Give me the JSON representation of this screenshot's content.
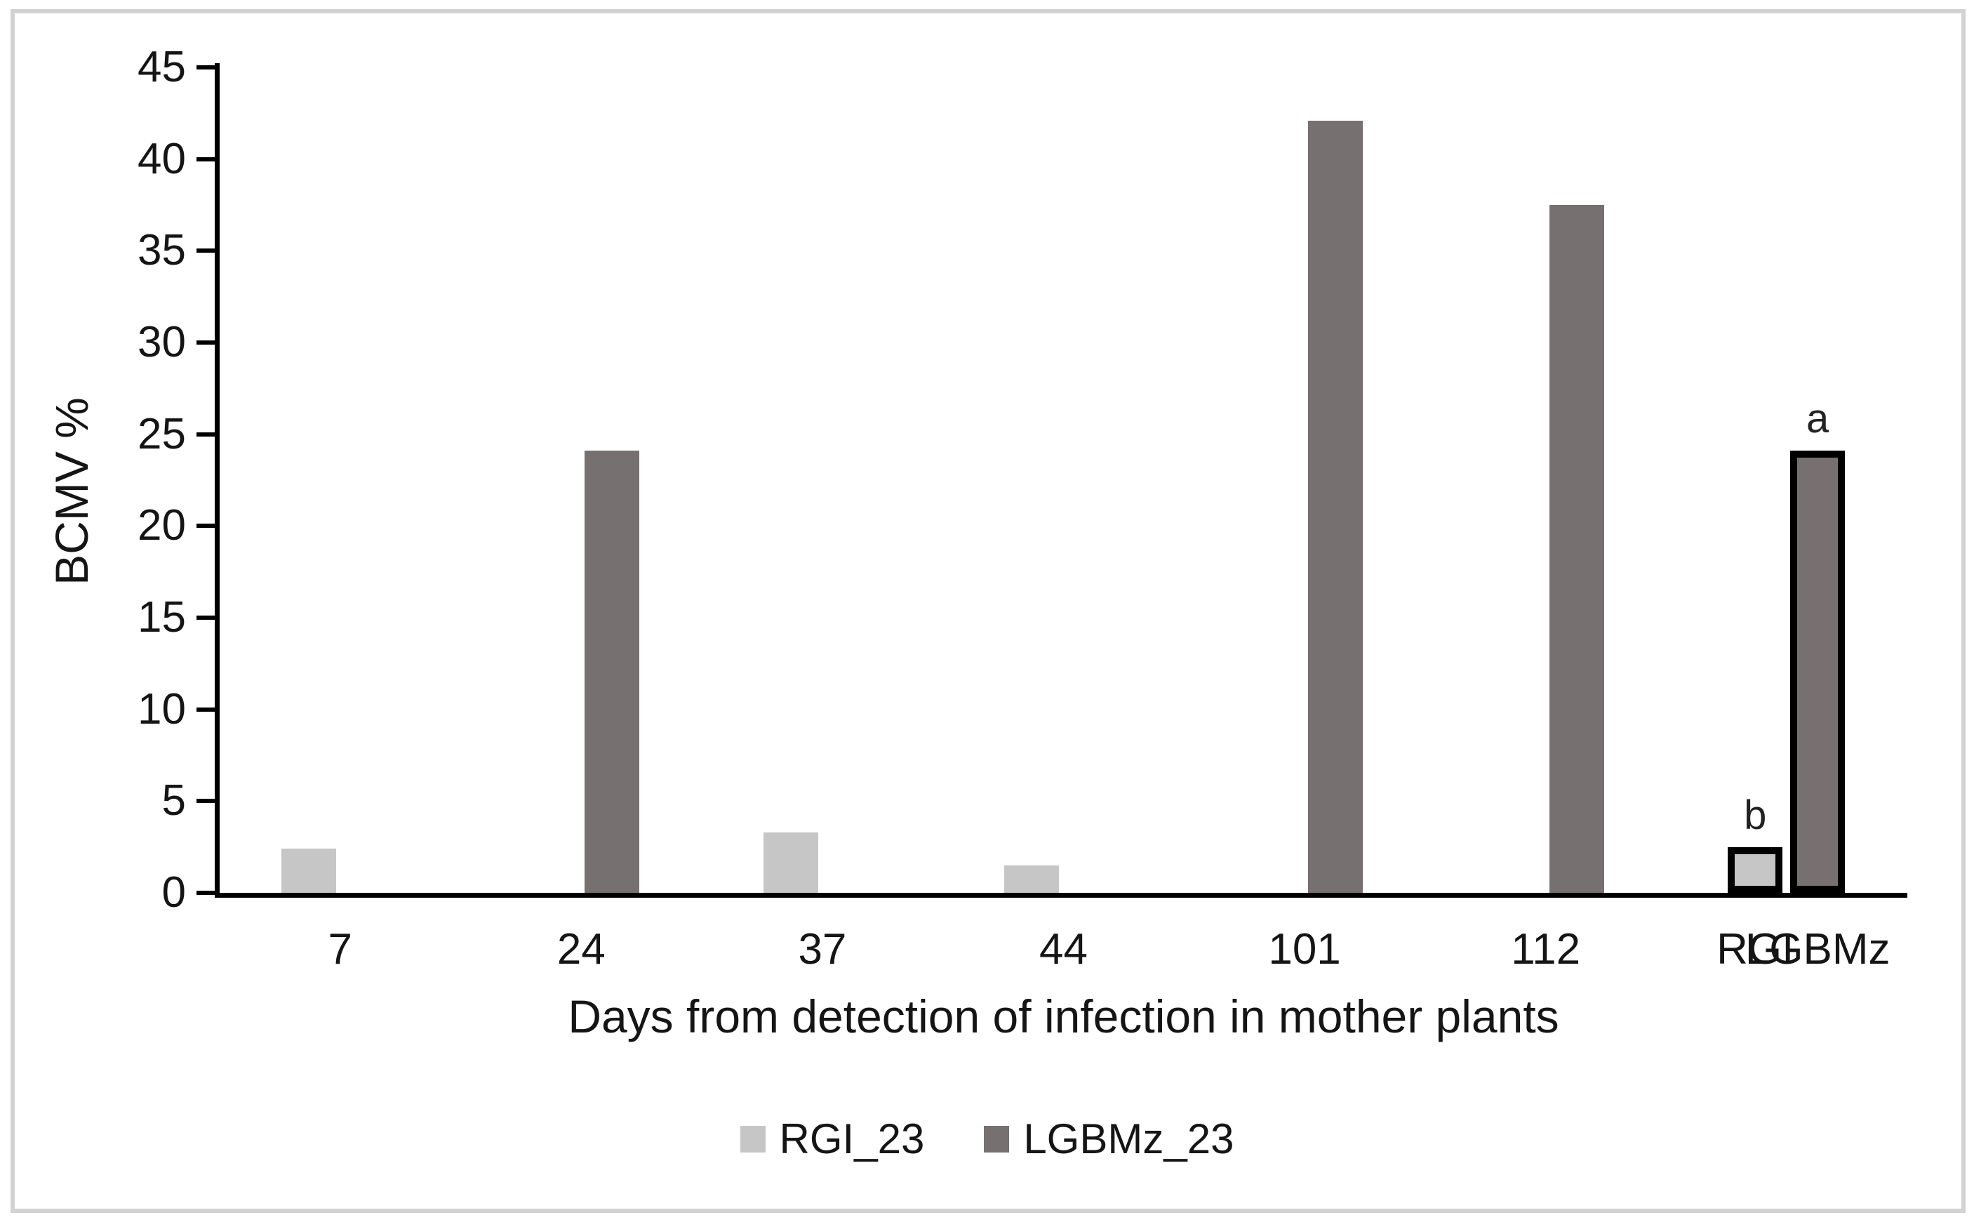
{
  "colors": {
    "series_light": "#c6c6c6",
    "series_dark": "#767070",
    "axis": "#000000",
    "bar_outline": "#000000",
    "frame_border": "#d2d2d2",
    "text": "#151515",
    "background": "#ffffff"
  },
  "chart_data": {
    "type": "bar",
    "title": "",
    "xlabel": "Days from detection of infection in mother plants",
    "ylabel": "BCMV %",
    "ylim": [
      0,
      45
    ],
    "yticks": [
      0,
      5,
      10,
      15,
      20,
      25,
      30,
      35,
      40,
      45
    ],
    "grid": false,
    "legend_position": "bottom",
    "categories": [
      "7",
      "24",
      "37",
      "44",
      "101",
      "112",
      ""
    ],
    "series": [
      {
        "name": "RGI_23",
        "color": "#c6c6c6",
        "values": [
          2.4,
          0,
          3.3,
          1.5,
          0,
          0,
          2.5
        ]
      },
      {
        "name": "LGBMz_23",
        "color": "#767070",
        "values": [
          0,
          24.1,
          0,
          0,
          42.1,
          37.5,
          24.1
        ]
      }
    ],
    "final_group": {
      "category_index": 6,
      "labels": [
        "RGI",
        "LGBMz"
      ],
      "annotations": [
        "b",
        "a"
      ],
      "outlined": true
    }
  }
}
